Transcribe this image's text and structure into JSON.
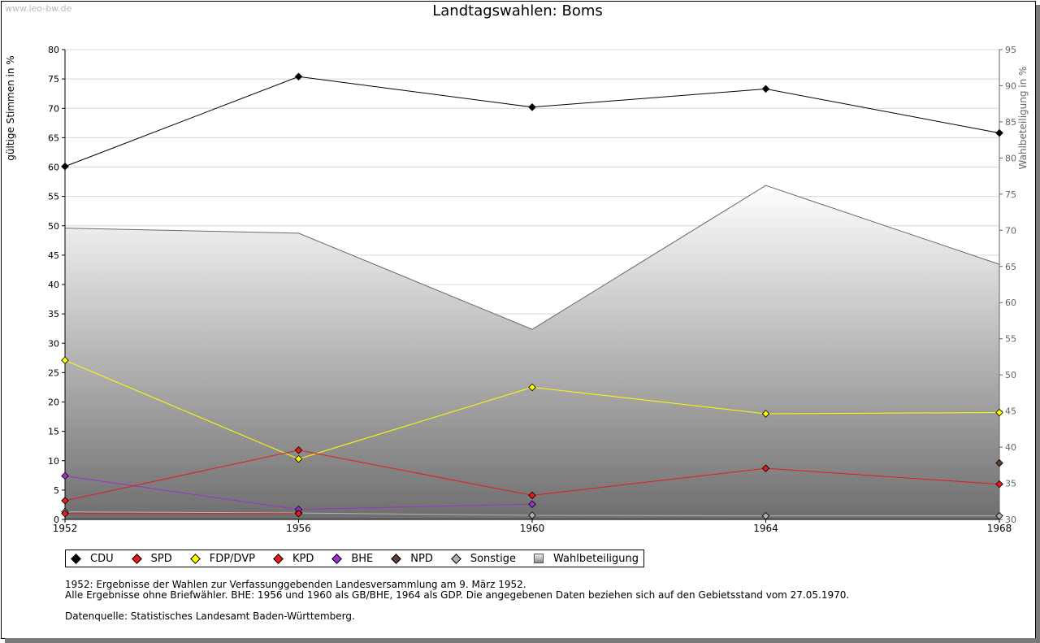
{
  "watermark": "www.leo-bw.de",
  "chart_data": {
    "type": "line",
    "title": "Landtagswahlen: Boms",
    "ylabel": "gültige Stimmen in %",
    "ylabel_right": "Wahlbeteiligung in %",
    "x": [
      "1952",
      "1956",
      "1960",
      "1964",
      "1968"
    ],
    "ylim": [
      0,
      80
    ],
    "yticks": [
      "0",
      "5",
      "10",
      "15",
      "20",
      "25",
      "30",
      "35",
      "40",
      "45",
      "50",
      "55",
      "60",
      "65",
      "70",
      "75",
      "80"
    ],
    "ylim_right": [
      30,
      95
    ],
    "yticks_right": [
      "30",
      "35",
      "40",
      "45",
      "50",
      "55",
      "60",
      "65",
      "70",
      "75",
      "80",
      "85",
      "90",
      "95"
    ],
    "grid": true,
    "legend_position": "bottom",
    "series": [
      {
        "name": "CDU",
        "color": "#000000",
        "values": [
          60.1,
          75.4,
          70.2,
          73.3,
          65.8
        ]
      },
      {
        "name": "SPD",
        "color": "#e41a1c",
        "values": [
          3.2,
          11.8,
          4.1,
          8.7,
          6.0
        ]
      },
      {
        "name": "FDP/DVP",
        "color": "#ffff00",
        "values": [
          27.1,
          10.3,
          22.5,
          18.0,
          18.2
        ]
      },
      {
        "name": "KPD",
        "color": "#e41a1c",
        "values": [
          1.0,
          1.0,
          null,
          null,
          null
        ]
      },
      {
        "name": "BHE",
        "color": "#9933cc",
        "values": [
          7.4,
          1.7,
          2.6,
          null,
          null
        ]
      },
      {
        "name": "NPD",
        "color": "#5c4033",
        "values": [
          null,
          null,
          null,
          null,
          9.6
        ]
      },
      {
        "name": "Sonstige",
        "color": "#b0b0b0",
        "values": [
          1.3,
          1.1,
          0.7,
          0.6,
          0.6
        ]
      }
    ],
    "turnout": {
      "name": "Wahlbeteiligung",
      "axis": "right",
      "values": [
        70.3,
        69.6,
        56.3,
        76.2,
        65.3
      ]
    }
  },
  "notes": [
    "1952: Ergebnisse der Wahlen zur Verfassunggebenden Landesversammlung am 9. März 1952.",
    "Alle Ergebnisse ohne Briefwähler. BHE: 1956 und 1960 als GB/BHE, 1964 als GDP. Die angegebenen Daten beziehen sich auf den Gebietsstand vom 27.05.1970.",
    "Datenquelle: Statistisches Landesamt Baden-Württemberg."
  ]
}
